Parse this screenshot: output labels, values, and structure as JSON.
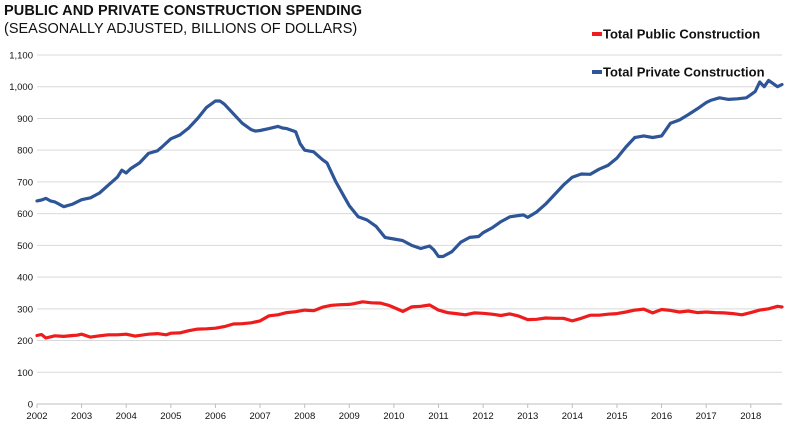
{
  "chart_data": {
    "type": "line",
    "title": "PUBLIC AND PRIVATE CONSTRUCTION SPENDING",
    "subtitle": "(SEASONALLY ADJUSTED, BILLIONS OF DOLLARS)",
    "xlabel": "",
    "ylabel": "",
    "xlim": [
      2002,
      2018.7
    ],
    "ylim": [
      0,
      1100
    ],
    "x_ticks": [
      "2002",
      "2003",
      "2004",
      "2005",
      "2006",
      "2007",
      "2008",
      "2009",
      "2010",
      "2011",
      "2012",
      "2013",
      "2014",
      "2015",
      "2016",
      "2017",
      "2018"
    ],
    "y_ticks": [
      "0",
      "100",
      "200",
      "300",
      "400",
      "500",
      "600",
      "700",
      "800",
      "900",
      "1,000",
      "1,100"
    ],
    "grid": true,
    "legend_position": "top-right",
    "series": [
      {
        "name": "Total Public Construction",
        "color": "#ee1c1c",
        "x": [
          2002.0,
          2002.1,
          2002.2,
          2002.4,
          2002.6,
          2002.8,
          2002.9,
          2003.0,
          2003.2,
          2003.4,
          2003.6,
          2003.8,
          2004.0,
          2004.2,
          2004.5,
          2004.7,
          2004.9,
          2005.0,
          2005.2,
          2005.4,
          2005.6,
          2005.8,
          2006.0,
          2006.2,
          2006.4,
          2006.6,
          2006.8,
          2007.0,
          2007.2,
          2007.4,
          2007.6,
          2007.8,
          2008.0,
          2008.2,
          2008.4,
          2008.6,
          2008.8,
          2009.0,
          2009.1,
          2009.3,
          2009.5,
          2009.7,
          2009.9,
          2010.0,
          2010.2,
          2010.4,
          2010.6,
          2010.8,
          2010.9,
          2011.0,
          2011.2,
          2011.4,
          2011.6,
          2011.8,
          2012.0,
          2012.2,
          2012.4,
          2012.6,
          2012.8,
          2013.0,
          2013.2,
          2013.4,
          2013.6,
          2013.8,
          2014.0,
          2014.2,
          2014.4,
          2014.6,
          2014.8,
          2015.0,
          2015.2,
          2015.4,
          2015.6,
          2015.8,
          2016.0,
          2016.2,
          2016.4,
          2016.6,
          2016.8,
          2017.0,
          2017.2,
          2017.4,
          2017.6,
          2017.8,
          2018.0,
          2018.2,
          2018.4,
          2018.6,
          2018.7
        ],
        "values": [
          216,
          219,
          208,
          215,
          213,
          216,
          217,
          220,
          211,
          215,
          218,
          218,
          220,
          214,
          220,
          222,
          218,
          223,
          224,
          231,
          236,
          237,
          239,
          244,
          252,
          253,
          256,
          262,
          278,
          281,
          288,
          291,
          296,
          294,
          305,
          311,
          313,
          314,
          316,
          322,
          319,
          318,
          310,
          304,
          292,
          306,
          308,
          312,
          304,
          296,
          288,
          285,
          281,
          287,
          286,
          283,
          279,
          284,
          277,
          266,
          267,
          271,
          270,
          270,
          262,
          270,
          280,
          280,
          283,
          285,
          290,
          296,
          299,
          287,
          298,
          295,
          290,
          293,
          288,
          290,
          288,
          287,
          285,
          281,
          288,
          296,
          300,
          308,
          306
        ]
      },
      {
        "name": "Total Private Construction",
        "color": "#2e5597",
        "x": [
          2002.0,
          2002.1,
          2002.2,
          2002.3,
          2002.4,
          2002.6,
          2002.8,
          2003.0,
          2003.2,
          2003.4,
          2003.6,
          2003.8,
          2003.9,
          2004.0,
          2004.1,
          2004.3,
          2004.5,
          2004.7,
          2004.8,
          2005.0,
          2005.2,
          2005.4,
          2005.6,
          2005.8,
          2006.0,
          2006.1,
          2006.2,
          2006.4,
          2006.6,
          2006.8,
          2006.9,
          2007.0,
          2007.2,
          2007.4,
          2007.5,
          2007.6,
          2007.8,
          2007.9,
          2008.0,
          2008.2,
          2008.4,
          2008.5,
          2008.7,
          2008.9,
          2009.0,
          2009.2,
          2009.4,
          2009.6,
          2009.8,
          2010.0,
          2010.2,
          2010.4,
          2010.6,
          2010.8,
          2010.9,
          2011.0,
          2011.1,
          2011.3,
          2011.5,
          2011.7,
          2011.9,
          2012.0,
          2012.2,
          2012.4,
          2012.6,
          2012.8,
          2012.9,
          2013.0,
          2013.2,
          2013.4,
          2013.6,
          2013.8,
          2014.0,
          2014.2,
          2014.4,
          2014.6,
          2014.8,
          2015.0,
          2015.2,
          2015.4,
          2015.6,
          2015.8,
          2016.0,
          2016.2,
          2016.4,
          2016.6,
          2016.8,
          2017.0,
          2017.1,
          2017.3,
          2017.5,
          2017.7,
          2017.9,
          2018.0,
          2018.1,
          2018.2,
          2018.3,
          2018.4,
          2018.5,
          2018.6,
          2018.7
        ],
        "values": [
          640,
          643,
          648,
          640,
          637,
          622,
          630,
          644,
          650,
          665,
          690,
          715,
          737,
          728,
          742,
          760,
          790,
          798,
          810,
          836,
          848,
          870,
          900,
          935,
          955,
          955,
          945,
          915,
          885,
          865,
          860,
          862,
          868,
          875,
          870,
          868,
          858,
          820,
          800,
          795,
          770,
          760,
          700,
          650,
          625,
          590,
          580,
          560,
          525,
          520,
          515,
          500,
          490,
          498,
          485,
          465,
          465,
          480,
          510,
          525,
          528,
          540,
          555,
          575,
          590,
          594,
          596,
          588,
          605,
          630,
          660,
          690,
          715,
          725,
          724,
          740,
          752,
          775,
          810,
          840,
          845,
          840,
          845,
          885,
          895,
          912,
          930,
          950,
          957,
          965,
          960,
          962,
          965,
          975,
          985,
          1015,
          1000,
          1020,
          1010,
          1000,
          1007
        ]
      }
    ]
  }
}
